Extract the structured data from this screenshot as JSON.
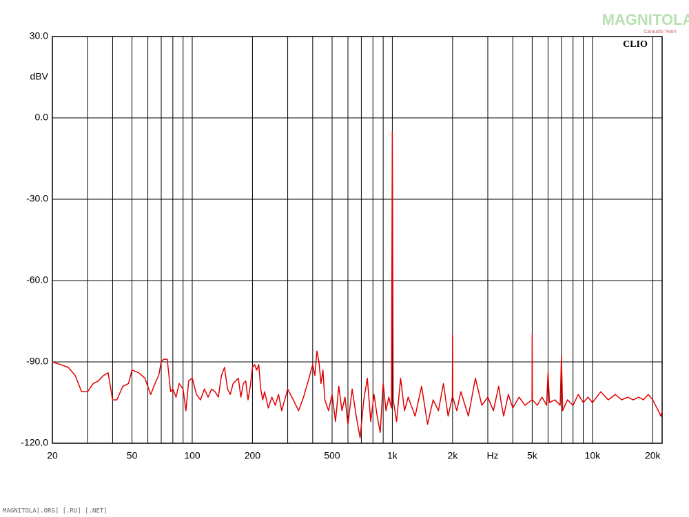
{
  "chart_data": {
    "type": "line",
    "log_x": true,
    "grid": true,
    "watermark": "MAGNITOLA",
    "watermark_sub": "Caraudio Team",
    "badge": "CLIO",
    "ylabel": "dBV",
    "xlabel": "Hz",
    "footer": "MAGNITOLA[.ORG] [.RU] [.NET]",
    "xlim": [
      20,
      22300
    ],
    "ylim": [
      -120,
      30
    ],
    "xticks": [
      20,
      50,
      100,
      200,
      500,
      {
        "value": 1000,
        "label": "1k"
      },
      {
        "value": 2000,
        "label": "2k"
      },
      {
        "value": 5000,
        "label": "5k"
      },
      {
        "value": 10000,
        "label": "10k"
      },
      {
        "value": 20000,
        "label": "20k"
      }
    ],
    "xminor": [
      30,
      40,
      60,
      70,
      80,
      90,
      300,
      400,
      600,
      700,
      800,
      900,
      3000,
      4000,
      6000,
      7000,
      8000,
      9000
    ],
    "yticks": [
      {
        "value": -120,
        "label": "-120.0"
      },
      {
        "value": -90,
        "label": "-90.0"
      },
      {
        "value": -60,
        "label": "-60.0"
      },
      {
        "value": -30,
        "label": "-30.0"
      },
      {
        "value": 0,
        "label": "0.0"
      },
      {
        "value": 30,
        "label": "30.0"
      }
    ],
    "x": [
      20,
      22,
      24,
      26,
      28,
      30,
      32,
      34,
      36,
      38,
      40,
      42,
      45,
      48,
      50,
      54,
      58,
      62,
      66,
      68,
      70,
      72,
      75,
      78,
      80,
      83,
      86,
      90,
      93,
      96,
      100,
      105,
      110,
      115,
      120,
      125,
      130,
      135,
      140,
      145,
      150,
      155,
      160,
      165,
      170,
      175,
      180,
      185,
      190,
      195,
      200,
      205,
      210,
      215,
      220,
      225,
      230,
      240,
      250,
      260,
      270,
      280,
      290,
      300,
      320,
      340,
      360,
      380,
      400,
      410,
      420,
      430,
      440,
      450,
      460,
      480,
      500,
      520,
      540,
      560,
      580,
      600,
      630,
      660,
      690,
      720,
      750,
      780,
      810,
      840,
      870,
      900,
      930,
      960,
      990,
      1000,
      1010,
      1050,
      1100,
      1150,
      1200,
      1300,
      1400,
      1500,
      1600,
      1700,
      1800,
      1900,
      1995,
      2000,
      2005,
      2100,
      2200,
      2400,
      2600,
      2800,
      3000,
      3200,
      3400,
      3500,
      3600,
      3800,
      4000,
      4300,
      4600,
      4990,
      5000,
      5010,
      5300,
      5600,
      5900,
      6000,
      6100,
      6500,
      6900,
      7000,
      7100,
      7500,
      8000,
      8500,
      9000,
      9500,
      10000,
      11000,
      12000,
      13000,
      14000,
      15000,
      16000,
      17000,
      18000,
      19000,
      20000,
      21000,
      22000,
      22300
    ],
    "series": [
      {
        "name": "spectrum",
        "color": "#e00000",
        "values": [
          -90,
          -91,
          -92,
          -95,
          -101,
          -101,
          -98,
          -97,
          -95,
          -94,
          -104,
          -104,
          -99,
          -98,
          -93,
          -94,
          -96,
          -102,
          -97,
          -95,
          -90,
          -89,
          -89,
          -101,
          -100,
          -103,
          -98,
          -100,
          -108,
          -97,
          -96,
          -102,
          -104,
          -100,
          -103,
          -100,
          -101,
          -103,
          -95,
          -92,
          -100,
          -102,
          -98,
          -97,
          -96,
          -103,
          -98,
          -97,
          -104,
          -99,
          -92,
          -91,
          -93,
          -91,
          -100,
          -104,
          -101,
          -107,
          -103,
          -106,
          -102,
          -108,
          -104,
          -100,
          -104,
          -108,
          -103,
          -97,
          -91,
          -95,
          -86,
          -90,
          -98,
          -93,
          -104,
          -108,
          -102,
          -112,
          -99,
          -108,
          -103,
          -113,
          -100,
          -110,
          -118,
          -104,
          -96,
          -112,
          -102,
          -110,
          -116,
          -98,
          -108,
          -103,
          -107,
          -5,
          -104,
          -112,
          -96,
          -108,
          -103,
          -110,
          -99,
          -113,
          -104,
          -108,
          -98,
          -110,
          -103,
          -80,
          -103,
          -108,
          -101,
          -110,
          -96,
          -106,
          -103,
          -108,
          -99,
          -105,
          -110,
          -102,
          -107,
          -103,
          -106,
          -104,
          -80,
          -104,
          -106,
          -103,
          -106,
          -94,
          -105,
          -104,
          -106,
          -88,
          -108,
          -104,
          -106,
          -102,
          -105,
          -103,
          -105,
          -101,
          -104,
          -102,
          -104,
          -103,
          -104,
          -103,
          -104,
          -102,
          -104,
          -107,
          -110,
          -108
        ]
      }
    ]
  }
}
